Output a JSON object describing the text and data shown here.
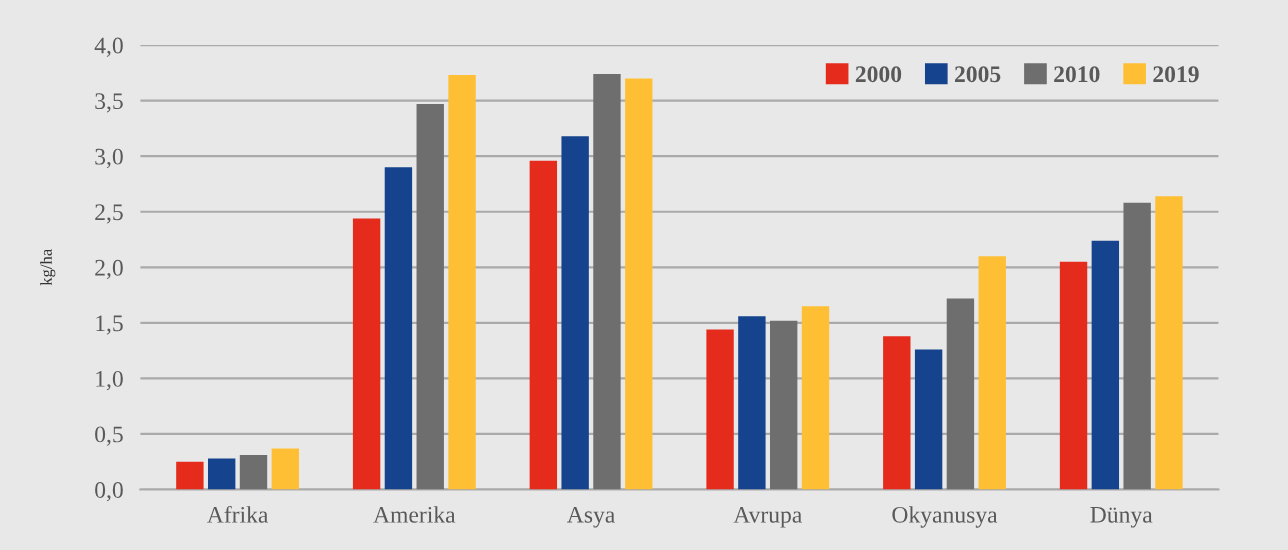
{
  "chart_data": {
    "type": "bar",
    "ylabel": "kg/ha",
    "categories": [
      "Afrika",
      "Amerika",
      "Asya",
      "Avrupa",
      "Okyanusya",
      "Dünya"
    ],
    "series": [
      {
        "name": "2000",
        "color": "#e42b1c",
        "values": [
          0.25,
          2.44,
          2.96,
          1.44,
          1.38,
          2.05
        ]
      },
      {
        "name": "2005",
        "color": "#15438d",
        "values": [
          0.28,
          2.9,
          3.18,
          1.56,
          1.26,
          2.24
        ]
      },
      {
        "name": "2010",
        "color": "#6e6e6e",
        "values": [
          0.31,
          3.47,
          3.74,
          1.52,
          1.72,
          2.58
        ]
      },
      {
        "name": "2019",
        "color": "#ffbf35",
        "values": [
          0.37,
          3.73,
          3.7,
          1.65,
          2.1,
          2.64
        ]
      }
    ],
    "ylim": [
      0,
      4
    ],
    "yticks": [
      {
        "value": 0,
        "label": "0,0"
      },
      {
        "value": 0.5,
        "label": "0,5"
      },
      {
        "value": 1,
        "label": "1,0"
      },
      {
        "value": 1.5,
        "label": "1,5"
      },
      {
        "value": 2,
        "label": "2,0"
      },
      {
        "value": 2.5,
        "label": "2,5"
      },
      {
        "value": 3,
        "label": "3,0"
      },
      {
        "value": 3.5,
        "label": "3,5"
      },
      {
        "value": 4,
        "label": "4,0"
      }
    ],
    "grid": "y",
    "legend": "top right"
  }
}
